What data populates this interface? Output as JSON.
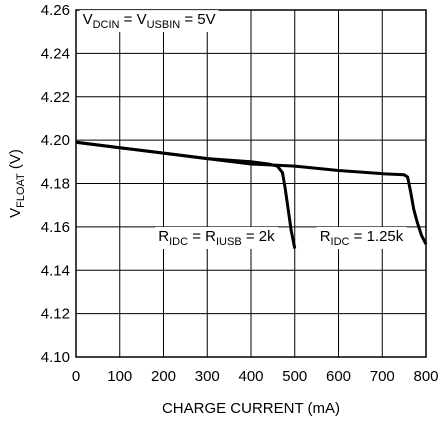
{
  "chart_data": {
    "type": "line",
    "title": "",
    "xlabel": "CHARGE CURRENT (mA)",
    "ylabel": {
      "main": "V",
      "sub": "FLOAT",
      "unit": " (V)"
    },
    "xlim": [
      0,
      800
    ],
    "ylim": [
      4.1,
      4.26
    ],
    "x_ticks": [
      "0",
      "100",
      "200",
      "300",
      "400",
      "500",
      "600",
      "700",
      "800"
    ],
    "y_ticks": [
      "4.10",
      "4.12",
      "4.14",
      "4.16",
      "4.18",
      "4.20",
      "4.22",
      "4.24",
      "4.26"
    ],
    "grid": true,
    "series": [
      {
        "x": [
          0,
          100,
          200,
          300,
          400,
          440,
          460,
          472,
          478,
          485,
          492,
          500
        ],
        "y": [
          4.199,
          4.1965,
          4.194,
          4.1915,
          4.19,
          4.189,
          4.188,
          4.185,
          4.178,
          4.168,
          4.158,
          4.15
        ]
      },
      {
        "x": [
          0,
          100,
          200,
          300,
          400,
          500,
          600,
          700,
          750,
          758,
          765,
          772,
          780,
          790,
          800
        ],
        "y": [
          4.199,
          4.1965,
          4.194,
          4.1915,
          4.189,
          4.188,
          4.186,
          4.1845,
          4.184,
          4.183,
          4.176,
          4.168,
          4.162,
          4.156,
          4.152
        ]
      }
    ],
    "annotations": [
      {
        "parts": [
          [
            "V",
            ""
          ],
          [
            "DCIN",
            "sub"
          ],
          [
            " = V",
            ""
          ],
          [
            "USBIN",
            "sub"
          ],
          [
            " = 5V",
            ""
          ]
        ],
        "x": 15,
        "y": 4.2535
      },
      {
        "parts": [
          [
            "R",
            ""
          ],
          [
            "IDC",
            "sub"
          ],
          [
            " = R",
            ""
          ],
          [
            "IUSB",
            "sub"
          ],
          [
            " = 2k",
            ""
          ]
        ],
        "x": 188,
        "y": 4.1535
      },
      {
        "parts": [
          [
            "R",
            ""
          ],
          [
            "IDC",
            "sub"
          ],
          [
            " = 1.25k",
            ""
          ]
        ],
        "x": 557,
        "y": 4.1535
      }
    ]
  }
}
